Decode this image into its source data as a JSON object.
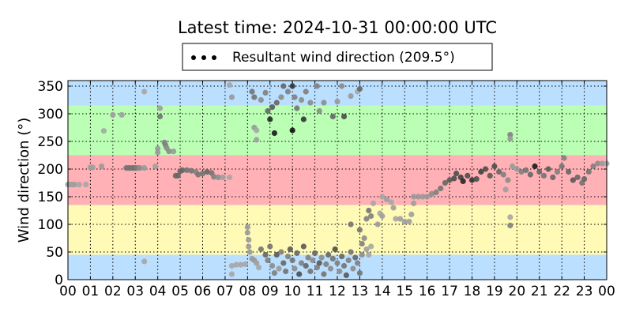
{
  "chart_data": {
    "type": "scatter",
    "title": "Latest time: 2024-10-31 00:00:00 UTC",
    "ylabel": "Wind direction (°)",
    "xlabel": "",
    "legend": {
      "label": "Resultant wind direction (209.5°)",
      "placement": "top-center, above plot"
    },
    "xlim": [
      0,
      24
    ],
    "ylim": [
      0,
      360
    ],
    "x_ticks": [
      "00",
      "01",
      "02",
      "03",
      "04",
      "05",
      "06",
      "07",
      "08",
      "09",
      "10",
      "11",
      "12",
      "13",
      "14",
      "15",
      "16",
      "17",
      "18",
      "19",
      "20",
      "21",
      "22",
      "23",
      "00"
    ],
    "y_ticks": [
      0,
      50,
      100,
      150,
      200,
      250,
      300,
      350
    ],
    "grid": true,
    "bands": [
      {
        "from": 0,
        "to": 45,
        "color": "#bbdfff"
      },
      {
        "from": 45,
        "to": 135,
        "color": "#fffab5"
      },
      {
        "from": 135,
        "to": 225,
        "color": "#ffb1b5"
      },
      {
        "from": 225,
        "to": 315,
        "color": "#bbffb5"
      },
      {
        "from": 315,
        "to": 360,
        "color": "#bbdfff"
      }
    ],
    "point_fields": [
      "hour",
      "direction_deg",
      "gray_level"
    ],
    "points": [
      [
        0.0,
        172,
        0.62
      ],
      [
        0.1,
        172,
        0.62
      ],
      [
        0.2,
        172,
        0.62
      ],
      [
        0.3,
        172,
        0.62
      ],
      [
        0.5,
        172,
        0.65
      ],
      [
        0.8,
        172,
        0.65
      ],
      [
        1.0,
        203,
        0.62
      ],
      [
        1.1,
        203,
        0.62
      ],
      [
        1.5,
        205,
        0.6
      ],
      [
        1.6,
        269,
        0.65
      ],
      [
        2.0,
        298,
        0.62
      ],
      [
        2.4,
        298,
        0.62
      ],
      [
        2.6,
        202,
        0.45
      ],
      [
        2.7,
        202,
        0.45
      ],
      [
        2.8,
        202,
        0.45
      ],
      [
        2.9,
        202,
        0.45
      ],
      [
        3.0,
        202,
        0.45
      ],
      [
        3.1,
        202,
        0.5
      ],
      [
        3.2,
        202,
        0.55
      ],
      [
        3.4,
        202,
        0.6
      ],
      [
        3.4,
        340,
        0.65
      ],
      [
        3.4,
        33,
        0.65
      ],
      [
        3.9,
        205,
        0.62
      ],
      [
        4.0,
        230,
        0.6
      ],
      [
        4.0,
        237,
        0.6
      ],
      [
        4.1,
        295,
        0.45
      ],
      [
        4.1,
        310,
        0.62
      ],
      [
        4.3,
        248,
        0.5
      ],
      [
        4.35,
        243,
        0.5
      ],
      [
        4.4,
        238,
        0.55
      ],
      [
        4.5,
        232,
        0.55
      ],
      [
        4.7,
        232,
        0.6
      ],
      [
        4.8,
        188,
        0.4
      ],
      [
        4.9,
        188,
        0.4
      ],
      [
        5.0,
        196,
        0.4
      ],
      [
        5.1,
        198,
        0.4
      ],
      [
        5.3,
        198,
        0.45
      ],
      [
        5.5,
        197,
        0.45
      ],
      [
        5.7,
        195,
        0.5
      ],
      [
        5.8,
        190,
        0.45
      ],
      [
        6.0,
        192,
        0.45
      ],
      [
        6.2,
        195,
        0.4
      ],
      [
        6.4,
        193,
        0.45
      ],
      [
        6.5,
        186,
        0.5
      ],
      [
        6.7,
        185,
        0.55
      ],
      [
        6.9,
        185,
        0.62
      ],
      [
        7.2,
        185,
        0.65
      ],
      [
        7.2,
        352,
        0.65
      ],
      [
        7.3,
        330,
        0.6
      ],
      [
        7.3,
        10,
        0.65
      ],
      [
        7.3,
        25,
        0.65
      ],
      [
        7.5,
        27,
        0.65
      ],
      [
        7.7,
        27,
        0.65
      ],
      [
        7.9,
        28,
        0.65
      ],
      [
        8.0,
        95,
        0.6
      ],
      [
        8.0,
        85,
        0.6
      ],
      [
        8.05,
        72,
        0.6
      ],
      [
        8.05,
        60,
        0.6
      ],
      [
        8.1,
        50,
        0.6
      ],
      [
        8.2,
        38,
        0.6
      ],
      [
        8.3,
        35,
        0.6
      ],
      [
        8.4,
        30,
        0.62
      ],
      [
        8.5,
        22,
        0.65
      ],
      [
        8.3,
        275,
        0.6
      ],
      [
        8.4,
        270,
        0.65
      ],
      [
        8.4,
        253,
        0.62
      ],
      [
        8.2,
        340,
        0.45
      ],
      [
        8.3,
        330,
        0.45
      ],
      [
        8.6,
        325,
        0.55
      ],
      [
        8.8,
        338,
        0.5
      ],
      [
        8.9,
        305,
        0.4
      ],
      [
        9.0,
        290,
        0.15
      ],
      [
        9.2,
        265,
        0.1
      ],
      [
        9.1,
        312,
        0.35
      ],
      [
        9.3,
        320,
        0.4
      ],
      [
        9.5,
        330,
        0.55
      ],
      [
        9.6,
        350,
        0.4
      ],
      [
        9.8,
        340,
        0.5
      ],
      [
        10.0,
        270,
        0.05
      ],
      [
        10.0,
        350,
        0.2
      ],
      [
        10.1,
        330,
        0.5
      ],
      [
        10.2,
        310,
        0.45
      ],
      [
        10.4,
        325,
        0.55
      ],
      [
        10.5,
        290,
        0.2
      ],
      [
        10.6,
        340,
        0.5
      ],
      [
        10.8,
        320,
        0.55
      ],
      [
        11.1,
        350,
        0.5
      ],
      [
        11.2,
        305,
        0.55
      ],
      [
        11.4,
        320,
        0.55
      ],
      [
        11.8,
        295,
        0.4
      ],
      [
        12.0,
        322,
        0.6
      ],
      [
        12.2,
        350,
        0.55
      ],
      [
        12.3,
        295,
        0.3
      ],
      [
        12.6,
        332,
        0.6
      ],
      [
        12.9,
        340,
        0.65
      ],
      [
        13.0,
        345,
        0.4
      ],
      [
        8.6,
        55,
        0.45
      ],
      [
        8.8,
        45,
        0.4
      ],
      [
        8.9,
        35,
        0.5
      ],
      [
        9.0,
        60,
        0.45
      ],
      [
        9.1,
        25,
        0.55
      ],
      [
        9.2,
        12,
        0.5
      ],
      [
        9.3,
        45,
        0.35
      ],
      [
        9.4,
        20,
        0.6
      ],
      [
        9.5,
        50,
        0.5
      ],
      [
        9.6,
        30,
        0.4
      ],
      [
        9.7,
        15,
        0.45
      ],
      [
        9.8,
        42,
        0.5
      ],
      [
        9.9,
        55,
        0.35
      ],
      [
        10.0,
        35,
        0.45
      ],
      [
        10.1,
        20,
        0.55
      ],
      [
        10.2,
        48,
        0.4
      ],
      [
        10.3,
        10,
        0.3
      ],
      [
        10.4,
        30,
        0.5
      ],
      [
        10.5,
        60,
        0.35
      ],
      [
        10.6,
        25,
        0.4
      ],
      [
        10.7,
        40,
        0.5
      ],
      [
        10.8,
        15,
        0.45
      ],
      [
        10.9,
        35,
        0.55
      ],
      [
        11.0,
        48,
        0.4
      ],
      [
        11.1,
        22,
        0.5
      ],
      [
        11.2,
        30,
        0.35
      ],
      [
        11.3,
        40,
        0.55
      ],
      [
        11.4,
        10,
        0.45
      ],
      [
        11.5,
        28,
        0.5
      ],
      [
        11.6,
        45,
        0.4
      ],
      [
        11.7,
        20,
        0.55
      ],
      [
        11.8,
        38,
        0.45
      ],
      [
        11.9,
        55,
        0.3
      ],
      [
        12.0,
        30,
        0.5
      ],
      [
        12.1,
        15,
        0.55
      ],
      [
        12.2,
        42,
        0.4
      ],
      [
        12.3,
        25,
        0.45
      ],
      [
        12.4,
        8,
        0.35
      ],
      [
        12.5,
        35,
        0.5
      ],
      [
        12.6,
        50,
        0.45
      ],
      [
        12.7,
        20,
        0.55
      ],
      [
        12.8,
        40,
        0.4
      ],
      [
        12.9,
        30,
        0.5
      ],
      [
        13.0,
        12,
        0.45
      ],
      [
        13.1,
        45,
        0.55
      ],
      [
        12.6,
        100,
        0.45
      ],
      [
        13.0,
        90,
        0.45
      ],
      [
        13.1,
        65,
        0.5
      ],
      [
        13.2,
        75,
        0.55
      ],
      [
        13.3,
        55,
        0.62
      ],
      [
        13.4,
        45,
        0.65
      ],
      [
        13.5,
        60,
        0.65
      ],
      [
        13.3,
        110,
        0.5
      ],
      [
        13.4,
        125,
        0.45
      ],
      [
        13.5,
        115,
        0.5
      ],
      [
        13.6,
        138,
        0.65
      ],
      [
        13.8,
        100,
        0.6
      ],
      [
        13.9,
        120,
        0.65
      ],
      [
        14.0,
        115,
        0.62
      ],
      [
        14.0,
        150,
        0.65
      ],
      [
        14.2,
        145,
        0.62
      ],
      [
        14.4,
        140,
        0.65
      ],
      [
        14.5,
        130,
        0.62
      ],
      [
        14.6,
        110,
        0.65
      ],
      [
        14.8,
        110,
        0.62
      ],
      [
        15.0,
        105,
        0.62
      ],
      [
        15.2,
        105,
        0.62
      ],
      [
        15.3,
        118,
        0.62
      ],
      [
        15.4,
        138,
        0.62
      ],
      [
        15.4,
        150,
        0.6
      ],
      [
        15.6,
        150,
        0.6
      ],
      [
        15.8,
        150,
        0.6
      ],
      [
        16.0,
        150,
        0.6
      ],
      [
        16.2,
        155,
        0.55
      ],
      [
        16.4,
        158,
        0.5
      ],
      [
        16.6,
        165,
        0.45
      ],
      [
        16.8,
        175,
        0.4
      ],
      [
        17.0,
        180,
        0.35
      ],
      [
        17.2,
        183,
        0.3
      ],
      [
        17.3,
        192,
        0.3
      ],
      [
        17.5,
        185,
        0.25
      ],
      [
        17.6,
        178,
        0.15
      ],
      [
        17.8,
        188,
        0.3
      ],
      [
        18.0,
        180,
        0.2
      ],
      [
        18.2,
        182,
        0.3
      ],
      [
        18.4,
        195,
        0.25
      ],
      [
        18.6,
        200,
        0.3
      ],
      [
        18.8,
        188,
        0.35
      ],
      [
        19.0,
        205,
        0.3
      ],
      [
        19.2,
        195,
        0.4
      ],
      [
        19.4,
        190,
        0.5
      ],
      [
        19.5,
        163,
        0.62
      ],
      [
        19.6,
        180,
        0.55
      ],
      [
        19.7,
        262,
        0.5
      ],
      [
        19.7,
        255,
        0.6
      ],
      [
        19.7,
        113,
        0.65
      ],
      [
        19.7,
        98,
        0.5
      ],
      [
        19.8,
        205,
        0.6
      ],
      [
        20.0,
        200,
        0.6
      ],
      [
        20.2,
        195,
        0.5
      ],
      [
        20.4,
        198,
        0.45
      ],
      [
        20.6,
        190,
        0.4
      ],
      [
        20.8,
        205,
        0.1
      ],
      [
        21.0,
        195,
        0.4
      ],
      [
        21.2,
        188,
        0.45
      ],
      [
        21.4,
        200,
        0.35
      ],
      [
        21.6,
        185,
        0.4
      ],
      [
        21.8,
        195,
        0.5
      ],
      [
        22.0,
        205,
        0.45
      ],
      [
        22.1,
        220,
        0.5
      ],
      [
        22.3,
        195,
        0.4
      ],
      [
        22.5,
        180,
        0.35
      ],
      [
        22.7,
        185,
        0.4
      ],
      [
        22.9,
        175,
        0.45
      ],
      [
        23.0,
        182,
        0.4
      ],
      [
        23.2,
        195,
        0.45
      ],
      [
        23.4,
        205,
        0.5
      ],
      [
        23.6,
        210,
        0.55
      ],
      [
        23.8,
        210,
        0.6
      ],
      [
        24.0,
        210,
        0.65
      ]
    ]
  }
}
